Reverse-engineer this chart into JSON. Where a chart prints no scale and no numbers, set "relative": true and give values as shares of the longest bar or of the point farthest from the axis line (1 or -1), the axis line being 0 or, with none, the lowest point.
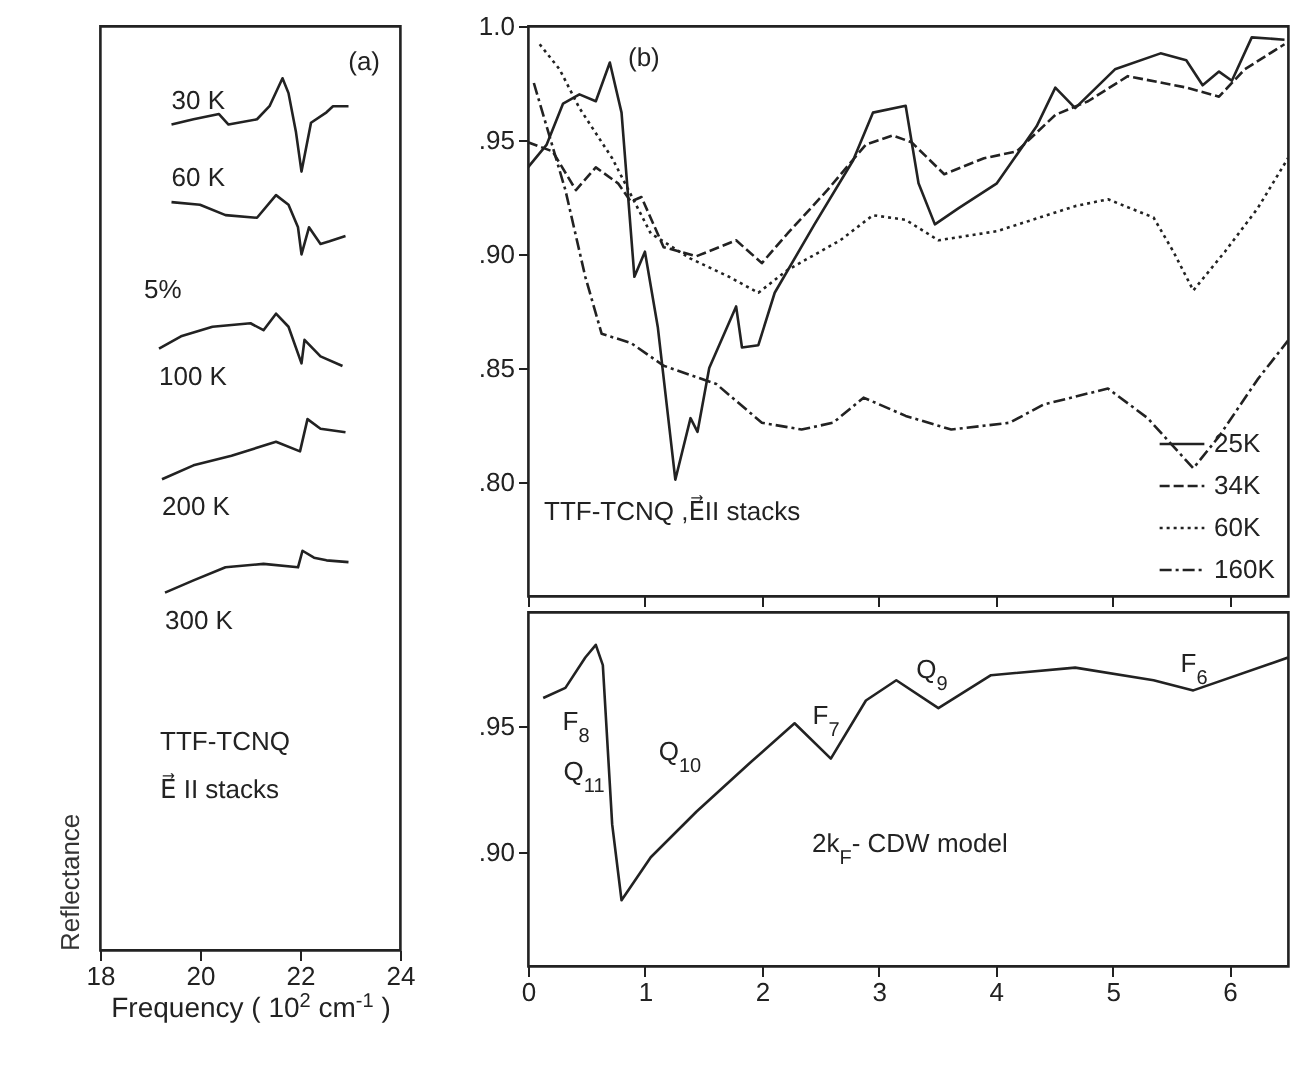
{
  "chart_data": [
    {
      "type": "line",
      "relative": true,
      "xlabel": "Frequency ( 10$^{2}$ cm$^{-1}$ )",
      "ylabel": "Reflectance",
      "xlim": [
        18,
        24
      ],
      "xticks": [
        18,
        20,
        22,
        24
      ],
      "tick_labels": "x",
      "legend": false,
      "grid": false,
      "annotations": [
        "(a)",
        "TTF-TCNQ",
        "E⃗ II stacks",
        "5%"
      ],
      "series": [
        {
          "name": "30 K",
          "color": "#222222",
          "line_style": "solid",
          "x": [
            19.43,
            19.87,
            20.38,
            20.57,
            21.14,
            21.39,
            21.65,
            21.77,
            21.92,
            22.03,
            22.22,
            22.53,
            22.66,
            22.97
          ],
          "values": [
            0.947,
            0.953,
            0.959,
            0.947,
            0.953,
            0.968,
            1.0,
            0.983,
            0.938,
            0.893,
            0.949,
            0.961,
            0.968,
            0.968
          ]
        },
        {
          "name": "60 K",
          "color": "#222222",
          "line_style": "solid",
          "x": [
            19.43,
            20.0,
            20.51,
            21.14,
            21.52,
            21.77,
            21.96,
            22.03,
            22.18,
            22.41,
            22.59,
            22.91
          ],
          "values": [
            0.858,
            0.855,
            0.843,
            0.84,
            0.866,
            0.855,
            0.829,
            0.798,
            0.829,
            0.81,
            0.813,
            0.819
          ]
        },
        {
          "name": "100 K",
          "color": "#222222",
          "line_style": "solid",
          "x": [
            19.18,
            19.62,
            20.25,
            21.01,
            21.27,
            21.52,
            21.77,
            22.03,
            22.09,
            22.41,
            22.85
          ],
          "values": [
            0.69,
            0.704,
            0.715,
            0.719,
            0.711,
            0.73,
            0.715,
            0.673,
            0.7,
            0.681,
            0.67
          ]
        },
        {
          "name": "200 K",
          "color": "#222222",
          "line_style": "solid",
          "x": [
            19.24,
            19.87,
            20.63,
            21.52,
            22.0,
            22.15,
            22.41,
            22.91
          ],
          "values": [
            0.54,
            0.556,
            0.567,
            0.583,
            0.572,
            0.609,
            0.598,
            0.594
          ]
        },
        {
          "name": "300 K",
          "color": "#222222",
          "line_style": "solid",
          "x": [
            19.3,
            19.87,
            20.51,
            21.27,
            21.96,
            22.05,
            22.28,
            22.53,
            22.97
          ],
          "values": [
            0.41,
            0.424,
            0.439,
            0.443,
            0.439,
            0.458,
            0.45,
            0.447,
            0.445
          ]
        }
      ]
    },
    {
      "type": "line",
      "xlim": [
        0,
        6.5
      ],
      "xticks": [
        0,
        1,
        2,
        3,
        4,
        5,
        6
      ],
      "ylim": [
        0.75,
        1.0
      ],
      "yticks": [
        {
          "value": 1.0,
          "label": "1.0"
        },
        {
          "value": 0.95,
          "label": ".95"
        },
        {
          "value": 0.9,
          "label": ".90"
        },
        {
          "value": 0.85,
          "label": ".85"
        },
        {
          "value": 0.8,
          "label": ".80"
        }
      ],
      "tick_labels": "y",
      "legend": "bottom right",
      "grid": false,
      "annotations": [
        "(b)",
        "TTF-TCNQ ,E⃗II stacks"
      ],
      "series": [
        {
          "name": "25K",
          "color": "#222222",
          "line_style": "solid",
          "x": [
            0,
            0.16,
            0.3,
            0.44,
            0.58,
            0.7,
            0.8,
            0.91,
            1.0,
            1.11,
            1.26,
            1.39,
            1.45,
            1.55,
            1.78,
            1.83,
            1.97,
            2.11,
            2.45,
            2.78,
            2.95,
            3.23,
            3.34,
            3.48,
            3.68,
            4.01,
            4.35,
            4.51,
            4.68,
            5.02,
            5.41,
            5.63,
            5.77,
            5.91,
            6.02,
            6.19,
            6.47
          ],
          "values": [
            0.938,
            0.948,
            0.966,
            0.97,
            0.967,
            0.984,
            0.962,
            0.89,
            0.901,
            0.868,
            0.801,
            0.828,
            0.822,
            0.85,
            0.877,
            0.859,
            0.86,
            0.883,
            0.913,
            0.941,
            0.962,
            0.965,
            0.931,
            0.913,
            0.92,
            0.931,
            0.956,
            0.973,
            0.964,
            0.981,
            0.988,
            0.985,
            0.974,
            0.98,
            0.976,
            0.995,
            0.994
          ]
        },
        {
          "name": "34K",
          "color": "#222222",
          "line_style": "dashed",
          "x": [
            0,
            0.21,
            0.41,
            0.58,
            0.77,
            0.88,
            0.97,
            1.16,
            1.44,
            1.78,
            2.0,
            2.22,
            2.56,
            2.89,
            3.12,
            3.28,
            3.56,
            3.9,
            4.18,
            4.51,
            4.79,
            5.13,
            5.63,
            5.91,
            6.13,
            6.47
          ],
          "values": [
            0.949,
            0.945,
            0.928,
            0.938,
            0.931,
            0.923,
            0.925,
            0.903,
            0.899,
            0.906,
            0.896,
            0.909,
            0.928,
            0.948,
            0.952,
            0.949,
            0.935,
            0.942,
            0.945,
            0.961,
            0.967,
            0.978,
            0.973,
            0.969,
            0.981,
            0.992
          ]
        },
        {
          "name": "60K",
          "color": "#222222",
          "line_style": "dotted",
          "x": [
            0.1,
            0.27,
            0.44,
            0.72,
            1.05,
            1.39,
            1.72,
            1.97,
            2.22,
            2.67,
            2.95,
            3.23,
            3.51,
            4.01,
            4.68,
            4.96,
            5.35,
            5.52,
            5.69,
            5.96,
            6.24,
            6.5
          ],
          "values": [
            0.992,
            0.981,
            0.964,
            0.942,
            0.909,
            0.898,
            0.89,
            0.883,
            0.893,
            0.906,
            0.917,
            0.915,
            0.906,
            0.91,
            0.921,
            0.924,
            0.916,
            0.901,
            0.884,
            0.901,
            0.92,
            0.942
          ]
        },
        {
          "name": "160K",
          "color": "#222222",
          "line_style": "dashdot",
          "x": [
            0.05,
            0.32,
            0.49,
            0.63,
            0.88,
            1.16,
            1.61,
            2.0,
            2.34,
            2.61,
            2.87,
            3.23,
            3.62,
            4.12,
            4.41,
            4.96,
            5.3,
            5.69,
            5.91,
            6.24,
            6.5
          ],
          "values": [
            0.975,
            0.928,
            0.89,
            0.865,
            0.861,
            0.851,
            0.843,
            0.826,
            0.823,
            0.826,
            0.837,
            0.829,
            0.823,
            0.826,
            0.834,
            0.841,
            0.828,
            0.806,
            0.82,
            0.845,
            0.862
          ]
        }
      ]
    },
    {
      "type": "line",
      "xlim": [
        0,
        6.5
      ],
      "xticks": [
        0,
        1,
        2,
        3,
        4,
        5,
        6
      ],
      "ylim": [
        0.855,
        0.995
      ],
      "yticks": [
        {
          "value": 0.9,
          "label": ".90"
        },
        {
          "value": 0.95,
          "label": ".95"
        }
      ],
      "legend": false,
      "grid": false,
      "annotations": [
        "2k$_{F}$- CDW model",
        "F$_{8}$",
        "Q$_{11}$",
        "Q$_{10}$",
        "F$_{7}$",
        "Q$_{9}$",
        "F$_{6}$"
      ],
      "series": [
        {
          "color": "#222222",
          "line_style": "solid",
          "x": [
            0.13,
            0.32,
            0.49,
            0.58,
            0.64,
            0.72,
            0.8,
            1.05,
            1.44,
            1.89,
            2.28,
            2.59,
            2.89,
            3.15,
            3.51,
            3.96,
            4.68,
            5.35,
            5.69,
            6.5
          ],
          "values": [
            0.961,
            0.965,
            0.977,
            0.982,
            0.974,
            0.911,
            0.881,
            0.898,
            0.916,
            0.935,
            0.951,
            0.937,
            0.96,
            0.968,
            0.957,
            0.97,
            0.973,
            0.968,
            0.964,
            0.977
          ]
        }
      ]
    }
  ]
}
